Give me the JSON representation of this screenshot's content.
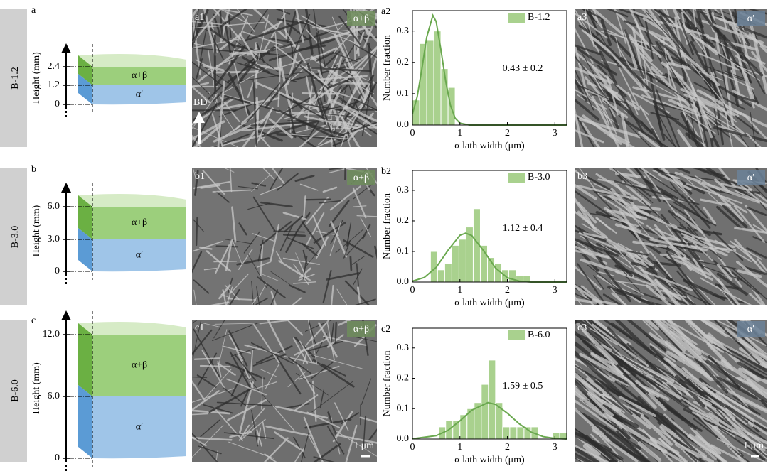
{
  "rows": [
    {
      "row_label": "B-1.2",
      "panel": "a",
      "height_label": "Height (mm)",
      "levels": [
        "2.4",
        "1.2",
        "0"
      ],
      "phase_top": "α+β",
      "phase_bottom": "α′",
      "image1": {
        "panel": "a1",
        "badge": "α+β",
        "direction": "BD"
      },
      "image3": {
        "panel": "a3",
        "badge": "α′"
      }
    },
    {
      "row_label": "B-3.0",
      "panel": "b",
      "height_label": "Height (mm)",
      "levels": [
        "6.0",
        "3.0",
        "0"
      ],
      "phase_top": "α+β",
      "phase_bottom": "α′",
      "image1": {
        "panel": "b1",
        "badge": "α+β"
      },
      "image3": {
        "panel": "b3",
        "badge": "α′"
      }
    },
    {
      "row_label": "B-6.0",
      "panel": "c",
      "height_label": "Height (mm)",
      "levels": [
        "12.0",
        "6.0",
        "0"
      ],
      "phase_top": "α+β",
      "phase_bottom": "α′",
      "image1": {
        "panel": "c1",
        "badge": "α+β",
        "scale_bar": "1 μm"
      },
      "image3": {
        "panel": "c3",
        "badge": "α′",
        "scale_bar": "1 μm"
      }
    }
  ],
  "chart_data": [
    {
      "type": "histogram",
      "panel": "a2",
      "xlabel": "α lath width (μm)",
      "ylabel": "Number fraction",
      "annotation": "0.43 ± 0.2",
      "bins": [
        0,
        0.15,
        0.3,
        0.45,
        0.6,
        0.75,
        0.9
      ],
      "series": [
        {
          "name": "B-1.2",
          "color": "#a9d18e",
          "values": [
            0.08,
            0.26,
            0.27,
            0.3,
            0.18,
            0.12
          ]
        }
      ],
      "fit": {
        "color": "#6aa84f",
        "x": [
          0,
          0.1,
          0.2,
          0.3,
          0.43,
          0.5,
          0.6,
          0.7,
          0.8,
          0.9,
          1.0,
          1.2,
          3.25
        ],
        "values": [
          0.035,
          0.09,
          0.18,
          0.28,
          0.35,
          0.33,
          0.24,
          0.14,
          0.063,
          0.022,
          0.006,
          0,
          0
        ]
      },
      "xlim": [
        0,
        3.25
      ],
      "ylim": [
        0,
        0.365
      ],
      "xticks": [
        0,
        1,
        2,
        3
      ],
      "yticks": [
        {
          "value": 0,
          "label": "0.0"
        },
        0.1,
        0.2,
        0.3
      ]
    },
    {
      "type": "histogram",
      "panel": "b2",
      "xlabel": "α lath width (μm)",
      "ylabel": "Number fraction",
      "annotation": "1.12 ± 0.4",
      "bins": [
        0.38,
        0.53,
        0.68,
        0.83,
        0.98,
        1.13,
        1.28,
        1.43,
        1.58,
        1.73,
        1.88,
        2.03,
        2.18,
        2.33,
        2.48
      ],
      "series": [
        {
          "name": "B-3.0",
          "color": "#a9d18e",
          "values": [
            0.1,
            0.04,
            0.06,
            0.12,
            0.14,
            0.18,
            0.24,
            0.12,
            0.08,
            0.06,
            0.04,
            0.04,
            0.02,
            0.02
          ]
        }
      ],
      "fit": {
        "color": "#6aa84f",
        "x": [
          0,
          0.25,
          0.5,
          0.75,
          1.0,
          1.12,
          1.25,
          1.5,
          1.75,
          2.0,
          2.25,
          2.5,
          3.25
        ],
        "values": [
          0.003,
          0.015,
          0.048,
          0.104,
          0.153,
          0.16,
          0.152,
          0.102,
          0.046,
          0.014,
          0.003,
          0,
          0
        ]
      },
      "xlim": [
        0,
        3.25
      ],
      "ylim": [
        0,
        0.365
      ],
      "xticks": [
        0,
        1,
        2,
        3
      ],
      "yticks": [
        {
          "value": 0,
          "label": "0.0"
        },
        0.1,
        0.2,
        0.3
      ]
    },
    {
      "type": "histogram",
      "panel": "c2",
      "xlabel": "α lath width (μm)",
      "ylabel": "Number fraction",
      "annotation": "1.59 ± 0.5",
      "bins": [
        0.55,
        0.7,
        0.85,
        1.0,
        1.15,
        1.3,
        1.45,
        1.6,
        1.75,
        1.9,
        2.05,
        2.2,
        2.35,
        2.5,
        2.65,
        2.8,
        2.95,
        3.1,
        3.25
      ],
      "series": [
        {
          "name": "B-6.0",
          "color": "#a9d18e",
          "values": [
            0.04,
            0.06,
            0.06,
            0.08,
            0.1,
            0.12,
            0.18,
            0.26,
            0.12,
            0.04,
            0.04,
            0.04,
            0.04,
            0.04,
            0,
            0,
            0.02,
            0.02
          ]
        }
      ],
      "fit": {
        "color": "#6aa84f",
        "x": [
          0,
          0.5,
          0.75,
          1.0,
          1.25,
          1.59,
          1.75,
          2.0,
          2.25,
          2.5,
          2.75,
          3.0,
          3.25
        ],
        "values": [
          0.001,
          0.011,
          0.029,
          0.06,
          0.095,
          0.12,
          0.114,
          0.085,
          0.05,
          0.023,
          0.008,
          0.002,
          0
        ]
      },
      "xlim": [
        0,
        3.25
      ],
      "ylim": [
        0,
        0.365
      ],
      "xticks": [
        0,
        1,
        2,
        3
      ],
      "yticks": [
        {
          "value": 0,
          "label": "0.0"
        },
        0.1,
        0.2,
        0.3
      ]
    }
  ]
}
